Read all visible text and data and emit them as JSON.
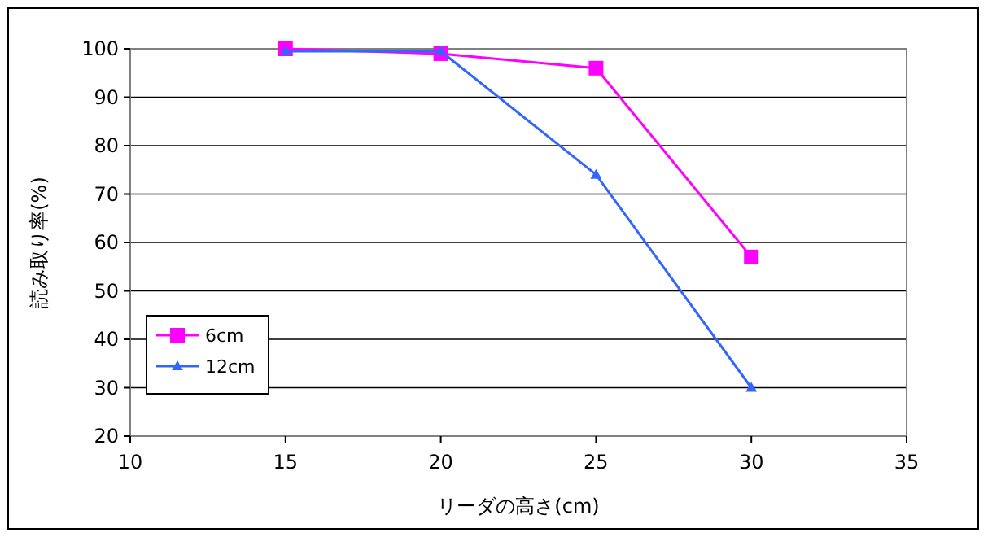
{
  "chart_data": {
    "type": "line",
    "xlabel": "リーダの高さ(cm)",
    "ylabel": "読み取り率(%)",
    "xlim": [
      10,
      35
    ],
    "xticks": [
      10,
      15,
      20,
      25,
      30,
      35
    ],
    "ylim": [
      20,
      100
    ],
    "yticks": [
      20,
      30,
      40,
      50,
      60,
      70,
      80,
      90,
      100
    ],
    "grid": "y",
    "legend": "bottom left",
    "series": [
      {
        "name": "6cm",
        "color": "#ff00ff",
        "marker": "square",
        "x": [
          15,
          20,
          25,
          30
        ],
        "values": [
          100,
          99,
          96,
          57
        ]
      },
      {
        "name": "12cm",
        "color": "#3366ff",
        "marker": "triangle",
        "x": [
          15,
          20,
          25,
          30
        ],
        "values": [
          99.5,
          99.5,
          74,
          30
        ]
      }
    ]
  }
}
